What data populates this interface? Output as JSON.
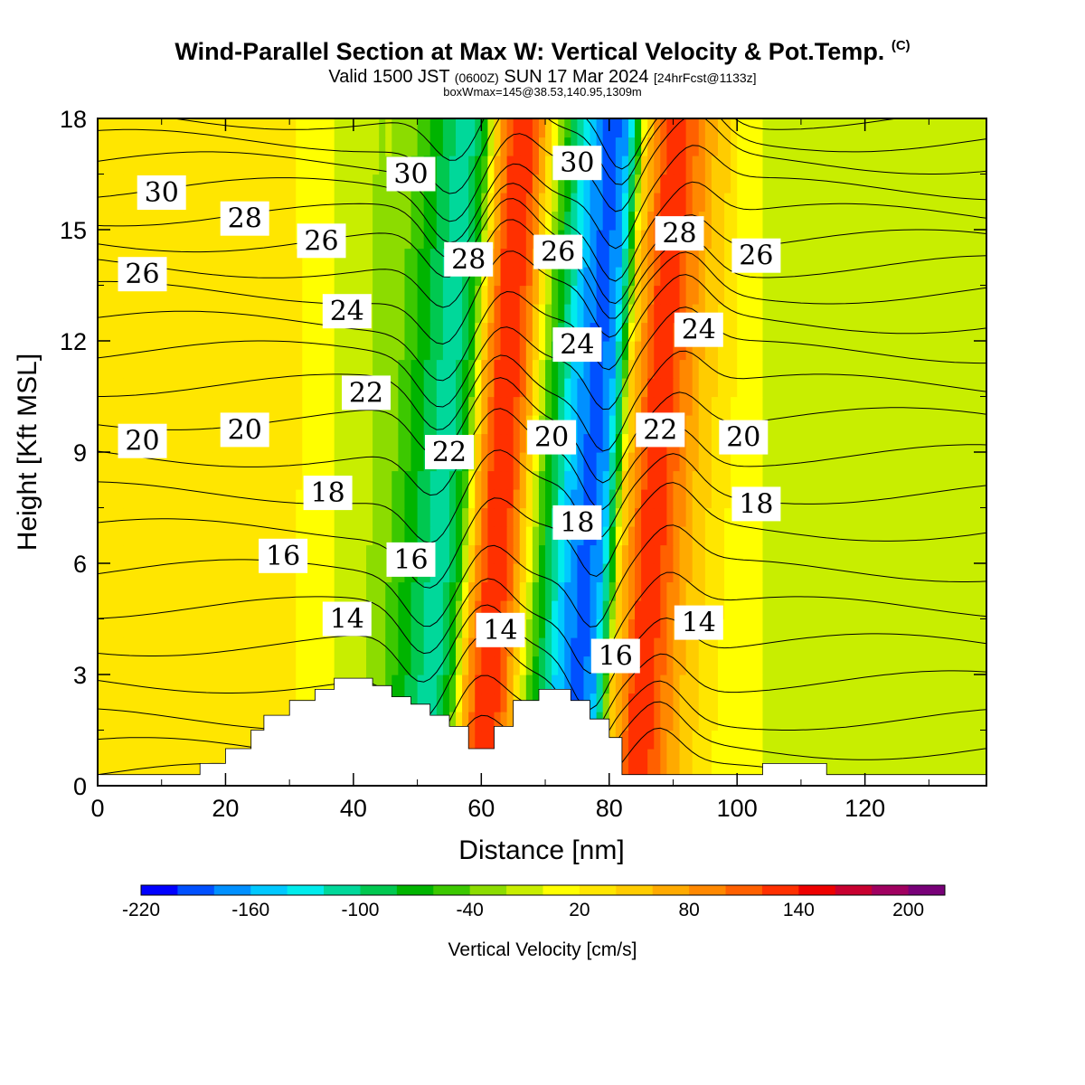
{
  "header": {
    "title": "Wind-Parallel Section at Max W: Vertical Velocity & Pot.Temp.",
    "copyright": "(C)",
    "valid_prefix": "Valid 1500 JST",
    "valid_utc": "(0600Z)",
    "valid_date": "SUN 17 Mar 2024",
    "forecast": "[24hrFcst@1133z]",
    "box_info": "boxWmax=145@38.53,140.95,1309m"
  },
  "chart_data": {
    "type": "heatmap",
    "title": "Wind-Parallel Section at Max W: Vertical Velocity & Pot.Temp.",
    "xlabel": "Distance [nm]",
    "ylabel": "Height [Kft MSL]",
    "xlim": [
      0,
      139
    ],
    "ylim": [
      0,
      18
    ],
    "xticks": [
      0,
      20,
      40,
      60,
      80,
      100,
      120
    ],
    "yticks": [
      0,
      3,
      6,
      9,
      12,
      15,
      18
    ],
    "grid": false,
    "colorbar": {
      "title": "Vertical Velocity [cm/s]",
      "tick_labels": [
        "-220",
        "-160",
        "-100",
        "-40",
        "20",
        "80",
        "140",
        "200"
      ],
      "tick_values": [
        -220,
        -160,
        -100,
        -40,
        20,
        80,
        140,
        200
      ],
      "range": [
        -220,
        220
      ],
      "step": 20,
      "colors": [
        "#0000ff",
        "#0050ff",
        "#0090ff",
        "#00c8ff",
        "#00ecec",
        "#00d89a",
        "#00c850",
        "#00b400",
        "#3cc800",
        "#8cdc00",
        "#c8ee00",
        "#ffff00",
        "#ffe600",
        "#ffcc00",
        "#ffaa00",
        "#ff8800",
        "#ff6000",
        "#ff3000",
        "#ee0000",
        "#c80030",
        "#a00060",
        "#780078"
      ]
    },
    "velocity_profile": {
      "x": [
        0,
        20,
        30,
        40,
        46,
        50,
        54,
        57,
        59,
        61,
        63,
        65,
        67,
        69,
        71,
        73,
        75,
        77,
        79,
        81,
        82,
        84,
        86,
        88,
        90,
        93,
        96,
        100,
        110,
        120,
        130,
        139
      ],
      "w": [
        25,
        35,
        25,
        -10,
        -40,
        -80,
        -120,
        -60,
        60,
        120,
        140,
        110,
        40,
        -40,
        -90,
        -140,
        -175,
        -190,
        -165,
        -60,
        40,
        90,
        140,
        130,
        100,
        60,
        35,
        10,
        -15,
        0,
        -15,
        -10
      ]
    },
    "terrain": {
      "x": [
        0,
        16,
        20,
        24,
        26,
        30,
        34,
        37,
        43,
        46,
        49,
        52,
        55,
        58,
        62,
        65,
        69,
        74,
        77,
        80,
        82,
        104,
        114,
        139
      ],
      "height": [
        0.3,
        0.6,
        1.0,
        1.5,
        1.9,
        2.3,
        2.6,
        2.9,
        2.7,
        2.4,
        2.2,
        1.9,
        1.6,
        1.0,
        1.6,
        2.3,
        2.6,
        2.3,
        1.8,
        1.3,
        0.3,
        0.6,
        0.3,
        0.3
      ]
    },
    "isentropes": {
      "levels": [
        10,
        11,
        12,
        13,
        14,
        15,
        16,
        17,
        18,
        19,
        20,
        21,
        22,
        23,
        24,
        25,
        26,
        27,
        28,
        29,
        30,
        31
      ],
      "base_height": [
        0.3,
        1.0,
        1.8,
        2.8,
        3.8,
        4.8,
        5.8,
        6.9,
        7.9,
        8.9,
        9.9,
        10.8,
        11.7,
        12.5,
        13.3,
        14.0,
        14.7,
        15.4,
        16.1,
        16.8,
        17.4,
        18.0
      ]
    },
    "contour_labels": [
      {
        "text": "30",
        "x": 10,
        "y": 16.0
      },
      {
        "text": "28",
        "x": 23,
        "y": 15.3
      },
      {
        "text": "26",
        "x": 35,
        "y": 14.7
      },
      {
        "text": "26",
        "x": 7,
        "y": 13.8
      },
      {
        "text": "30",
        "x": 49,
        "y": 16.5
      },
      {
        "text": "28",
        "x": 58,
        "y": 14.2
      },
      {
        "text": "24",
        "x": 39,
        "y": 12.8
      },
      {
        "text": "30",
        "x": 75,
        "y": 16.8
      },
      {
        "text": "26",
        "x": 72,
        "y": 14.4
      },
      {
        "text": "28",
        "x": 91,
        "y": 14.9
      },
      {
        "text": "26",
        "x": 103,
        "y": 14.3
      },
      {
        "text": "24",
        "x": 75,
        "y": 11.9
      },
      {
        "text": "24",
        "x": 94,
        "y": 12.3
      },
      {
        "text": "22",
        "x": 42,
        "y": 10.6
      },
      {
        "text": "22",
        "x": 55,
        "y": 9.0
      },
      {
        "text": "20",
        "x": 71,
        "y": 9.4
      },
      {
        "text": "22",
        "x": 88,
        "y": 9.6
      },
      {
        "text": "20",
        "x": 7,
        "y": 9.3
      },
      {
        "text": "20",
        "x": 23,
        "y": 9.6
      },
      {
        "text": "20",
        "x": 101,
        "y": 9.4
      },
      {
        "text": "18",
        "x": 36,
        "y": 7.9
      },
      {
        "text": "18",
        "x": 75,
        "y": 7.1
      },
      {
        "text": "18",
        "x": 103,
        "y": 7.6
      },
      {
        "text": "16",
        "x": 29,
        "y": 6.2
      },
      {
        "text": "16",
        "x": 49,
        "y": 6.1
      },
      {
        "text": "14",
        "x": 39,
        "y": 4.5
      },
      {
        "text": "14",
        "x": 63,
        "y": 4.2
      },
      {
        "text": "16",
        "x": 81,
        "y": 3.5
      },
      {
        "text": "14",
        "x": 94,
        "y": 4.4
      }
    ]
  }
}
